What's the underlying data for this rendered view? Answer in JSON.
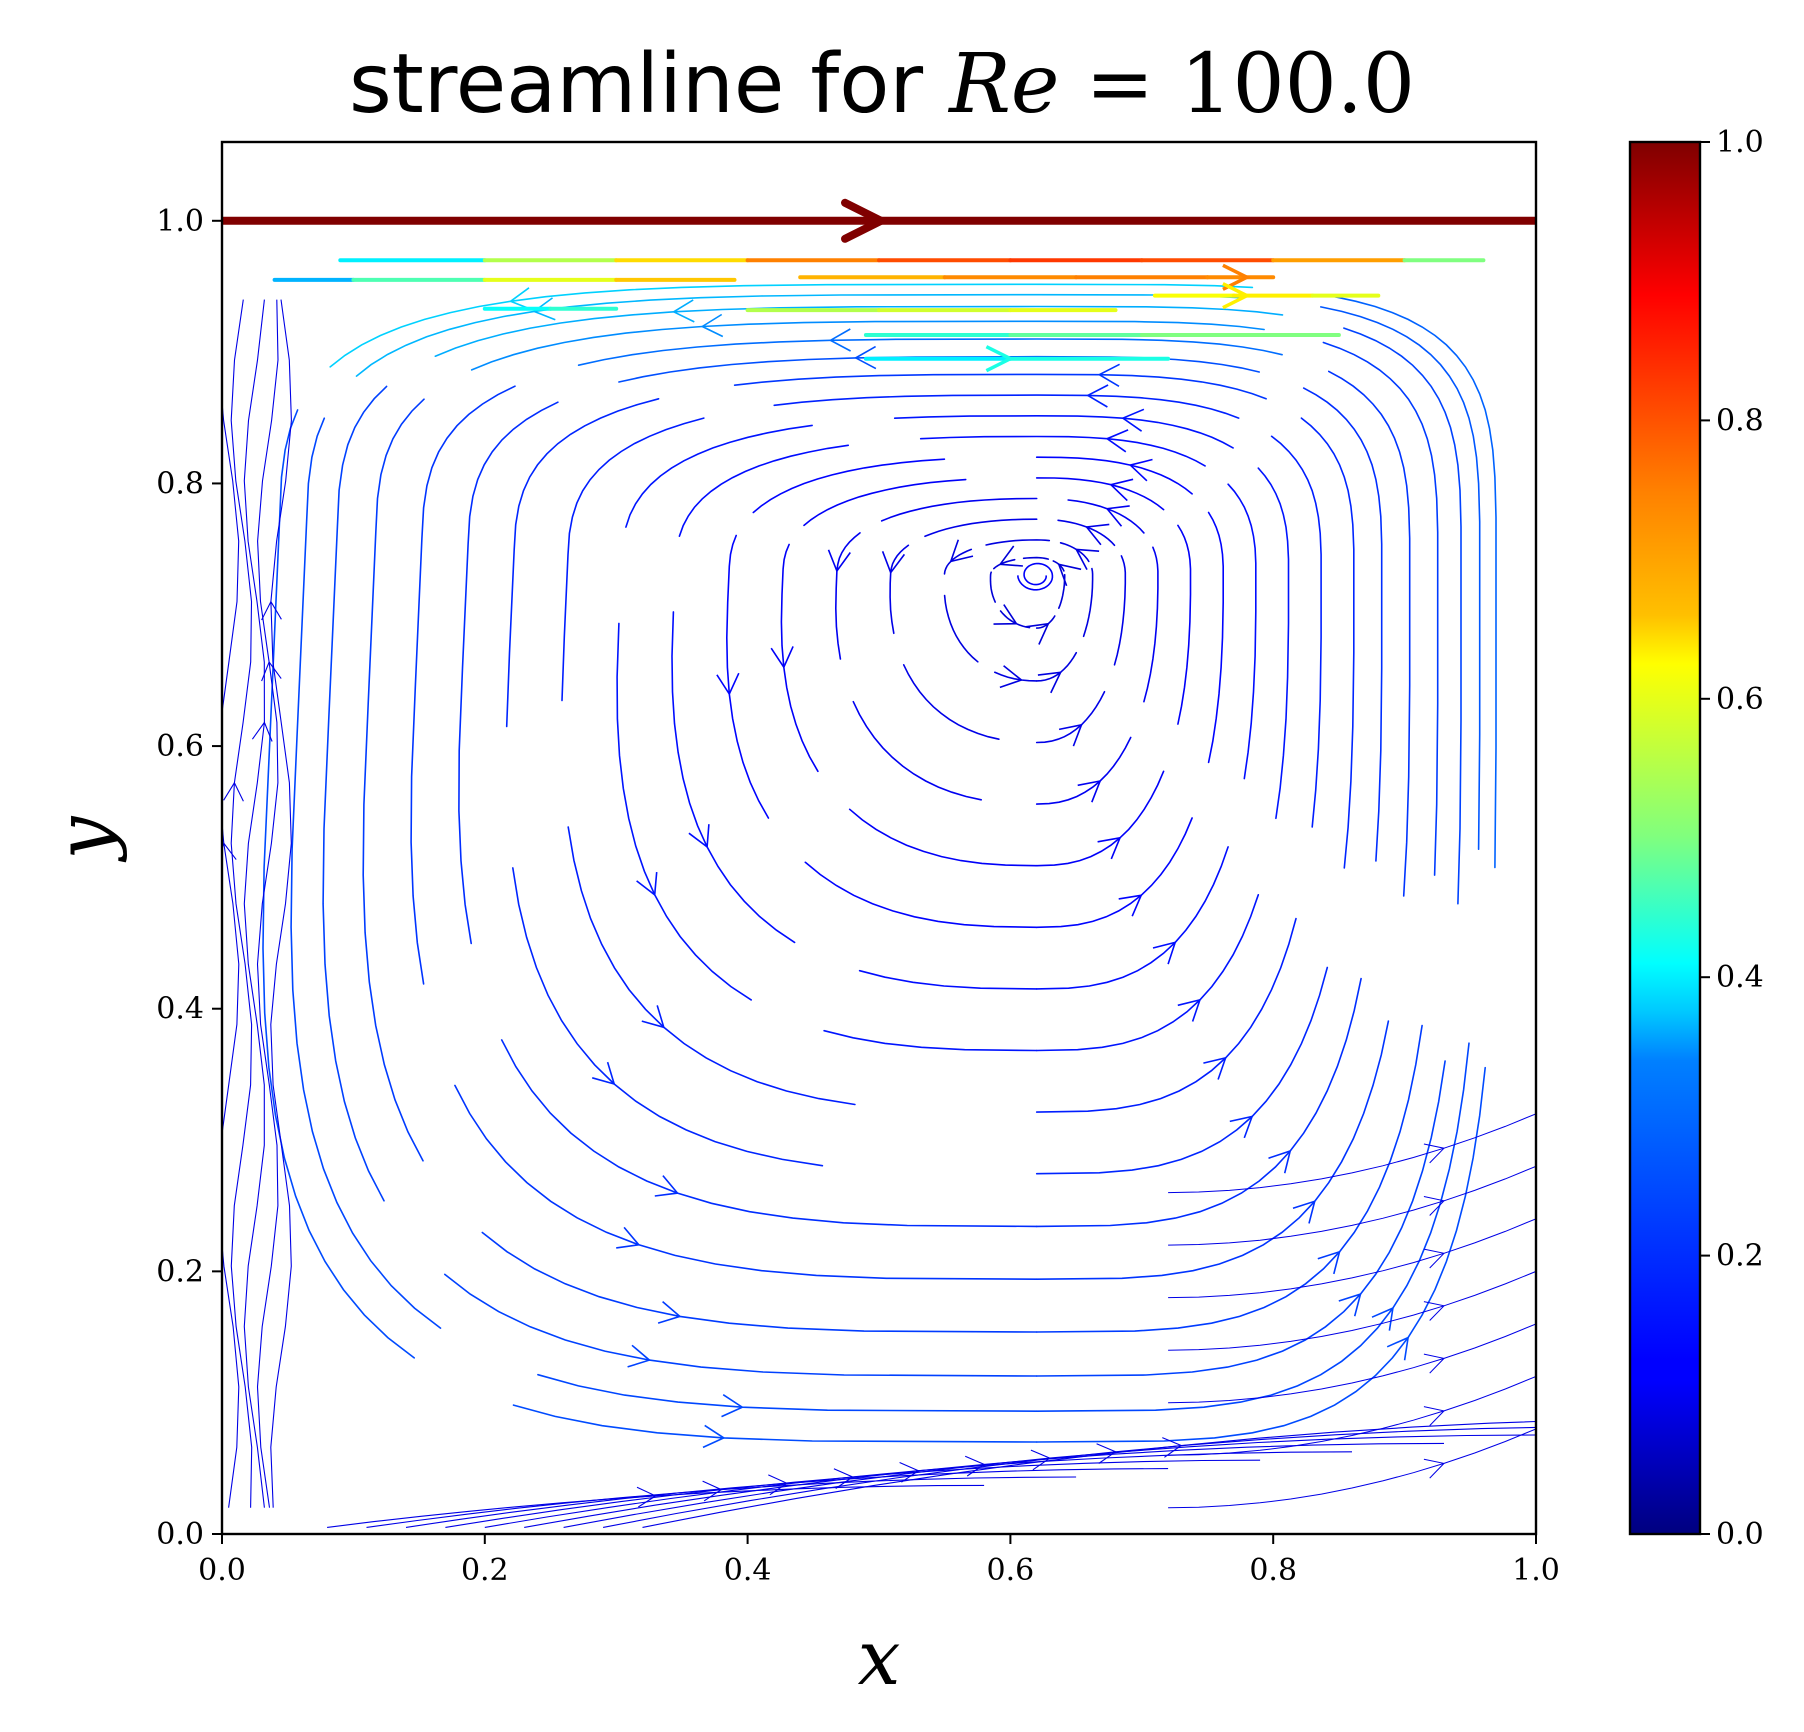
{
  "chart_data": {
    "type": "streamline",
    "title": {
      "prefix": "streamline for ",
      "math_var": "Re",
      "math_rest": " = 100.0"
    },
    "xlabel": "x",
    "ylabel": "y",
    "xlim": [
      0.0,
      1.0
    ],
    "ylim": [
      0.0,
      1.06
    ],
    "x_ticks": [
      "0.0",
      "0.2",
      "0.4",
      "0.6",
      "0.8",
      "1.0"
    ],
    "y_ticks": [
      "0.0",
      "0.2",
      "0.4",
      "0.6",
      "0.8",
      "1.0"
    ],
    "x_tick_values": [
      0.0,
      0.2,
      0.4,
      0.6,
      0.8,
      1.0
    ],
    "y_tick_values": [
      0.0,
      0.2,
      0.4,
      0.6,
      0.8,
      1.0
    ],
    "grid": false,
    "colormap": "jet",
    "colorbar": {
      "range": [
        0.0,
        1.0
      ],
      "ticks": [
        "0.0",
        "0.2",
        "0.4",
        "0.6",
        "0.8",
        "1.0"
      ],
      "tick_values": [
        0.0,
        0.2,
        0.4,
        0.6,
        0.8,
        1.0
      ],
      "colors": [
        "#00007f",
        "#0000ff",
        "#007fff",
        "#00ffff",
        "#7fff7f",
        "#ffff00",
        "#ff7f00",
        "#ff0000",
        "#7f0000"
      ]
    },
    "lid": {
      "y": 1.0,
      "speed": 1.0,
      "arrow_x": 0.5
    },
    "vortex": {
      "center": [
        0.62,
        0.73
      ],
      "rotation": "clockwise"
    },
    "top_streamlines": [
      {
        "x": [
          0.09,
          0.2,
          0.3,
          0.4,
          0.5,
          0.6,
          0.7,
          0.8,
          0.9,
          0.96
        ],
        "y": 0.97,
        "speed": [
          0.36,
          0.55,
          0.66,
          0.75,
          0.8,
          0.82,
          0.8,
          0.72,
          0.5,
          0.38
        ]
      },
      {
        "x": [
          0.04,
          0.1,
          0.2,
          0.3,
          0.39
        ],
        "y": 0.955,
        "speed": [
          0.3,
          0.45,
          0.6,
          0.68,
          0.72
        ]
      },
      {
        "x": [
          0.44,
          0.55,
          0.65,
          0.75,
          0.8
        ],
        "y": 0.957,
        "speed": [
          0.7,
          0.74,
          0.75,
          0.74,
          0.72
        ]
      },
      {
        "x": [
          0.71,
          0.77,
          0.83,
          0.88
        ],
        "y": 0.943,
        "speed": [
          0.62,
          0.64,
          0.6,
          0.55
        ]
      },
      {
        "x": [
          0.2,
          0.25,
          0.3
        ],
        "y": 0.933,
        "speed": [
          0.38,
          0.42,
          0.45
        ]
      },
      {
        "x": [
          0.4,
          0.5,
          0.6,
          0.68
        ],
        "y": 0.932,
        "speed": [
          0.55,
          0.58,
          0.6,
          0.6
        ]
      },
      {
        "x": [
          0.49,
          0.6,
          0.7,
          0.8,
          0.85
        ],
        "y": 0.913,
        "speed": [
          0.42,
          0.47,
          0.5,
          0.5,
          0.48
        ]
      },
      {
        "x": [
          0.49,
          0.6,
          0.72
        ],
        "y": 0.895,
        "speed": [
          0.36,
          0.4,
          0.4
        ]
      }
    ]
  }
}
